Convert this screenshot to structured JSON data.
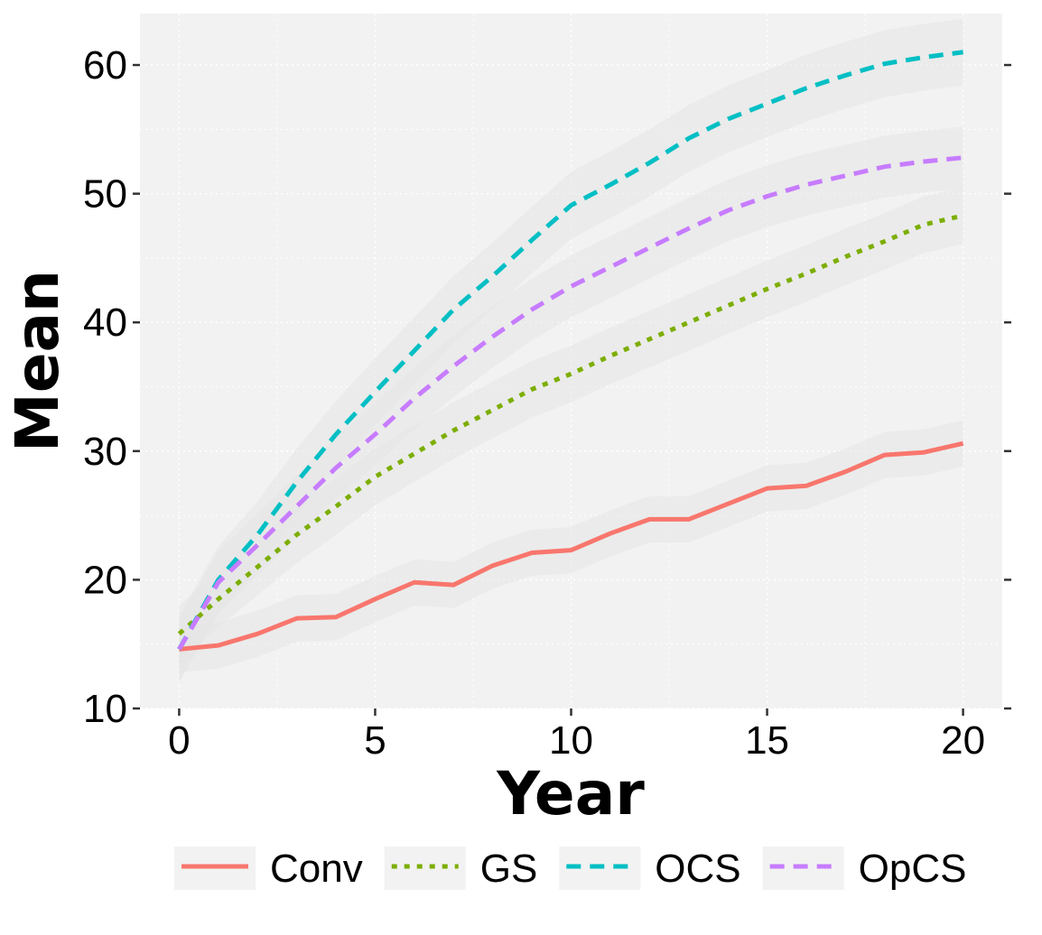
{
  "chart_data": {
    "type": "line",
    "xlabel": "Year",
    "ylabel": "Mean",
    "xlim": [
      -1,
      21
    ],
    "ylim": [
      10,
      64
    ],
    "xticks": [
      0,
      5,
      10,
      15,
      20
    ],
    "yticks": [
      10,
      20,
      30,
      40,
      50,
      60
    ],
    "grid": true,
    "legend_position": "bottom",
    "x": [
      0,
      1,
      2,
      3,
      4,
      5,
      6,
      7,
      8,
      9,
      10,
      11,
      12,
      13,
      14,
      15,
      16,
      17,
      18,
      19,
      20
    ],
    "series": [
      {
        "name": "Conv",
        "color": "#F8766D",
        "linestyle": "solid",
        "values": [
          14.6,
          14.9,
          15.8,
          17.0,
          17.1,
          18.5,
          19.8,
          19.6,
          21.1,
          22.1,
          22.3,
          23.6,
          24.7,
          24.7,
          25.9,
          27.1,
          27.3,
          28.4,
          29.7,
          29.9,
          30.6
        ],
        "band": 1.8
      },
      {
        "name": "GS",
        "color": "#7CAE00",
        "linestyle": "dotted",
        "values": [
          15.8,
          18.5,
          21.0,
          23.5,
          25.7,
          28.0,
          29.8,
          31.6,
          33.2,
          34.8,
          36.0,
          37.4,
          38.7,
          40.0,
          41.3,
          42.6,
          43.8,
          45.1,
          46.3,
          47.6,
          48.3
        ],
        "band": 2.2
      },
      {
        "name": "OCS",
        "color": "#00BFC4",
        "linestyle": "dashed",
        "values": [
          14.6,
          20.0,
          23.5,
          27.6,
          31.3,
          34.6,
          37.8,
          41.0,
          43.6,
          46.4,
          49.1,
          50.7,
          52.4,
          54.3,
          55.8,
          57.0,
          58.2,
          59.2,
          60.1,
          60.6,
          61.0
        ],
        "band": 2.6
      },
      {
        "name": "OpCS",
        "color": "#C77CFF",
        "linestyle": "dashed",
        "values": [
          14.6,
          19.8,
          22.7,
          25.7,
          28.7,
          31.3,
          34.1,
          36.6,
          38.9,
          41.0,
          42.8,
          44.3,
          45.8,
          47.3,
          48.7,
          49.8,
          50.7,
          51.4,
          52.1,
          52.5,
          52.8
        ],
        "band": 2.4
      }
    ]
  }
}
